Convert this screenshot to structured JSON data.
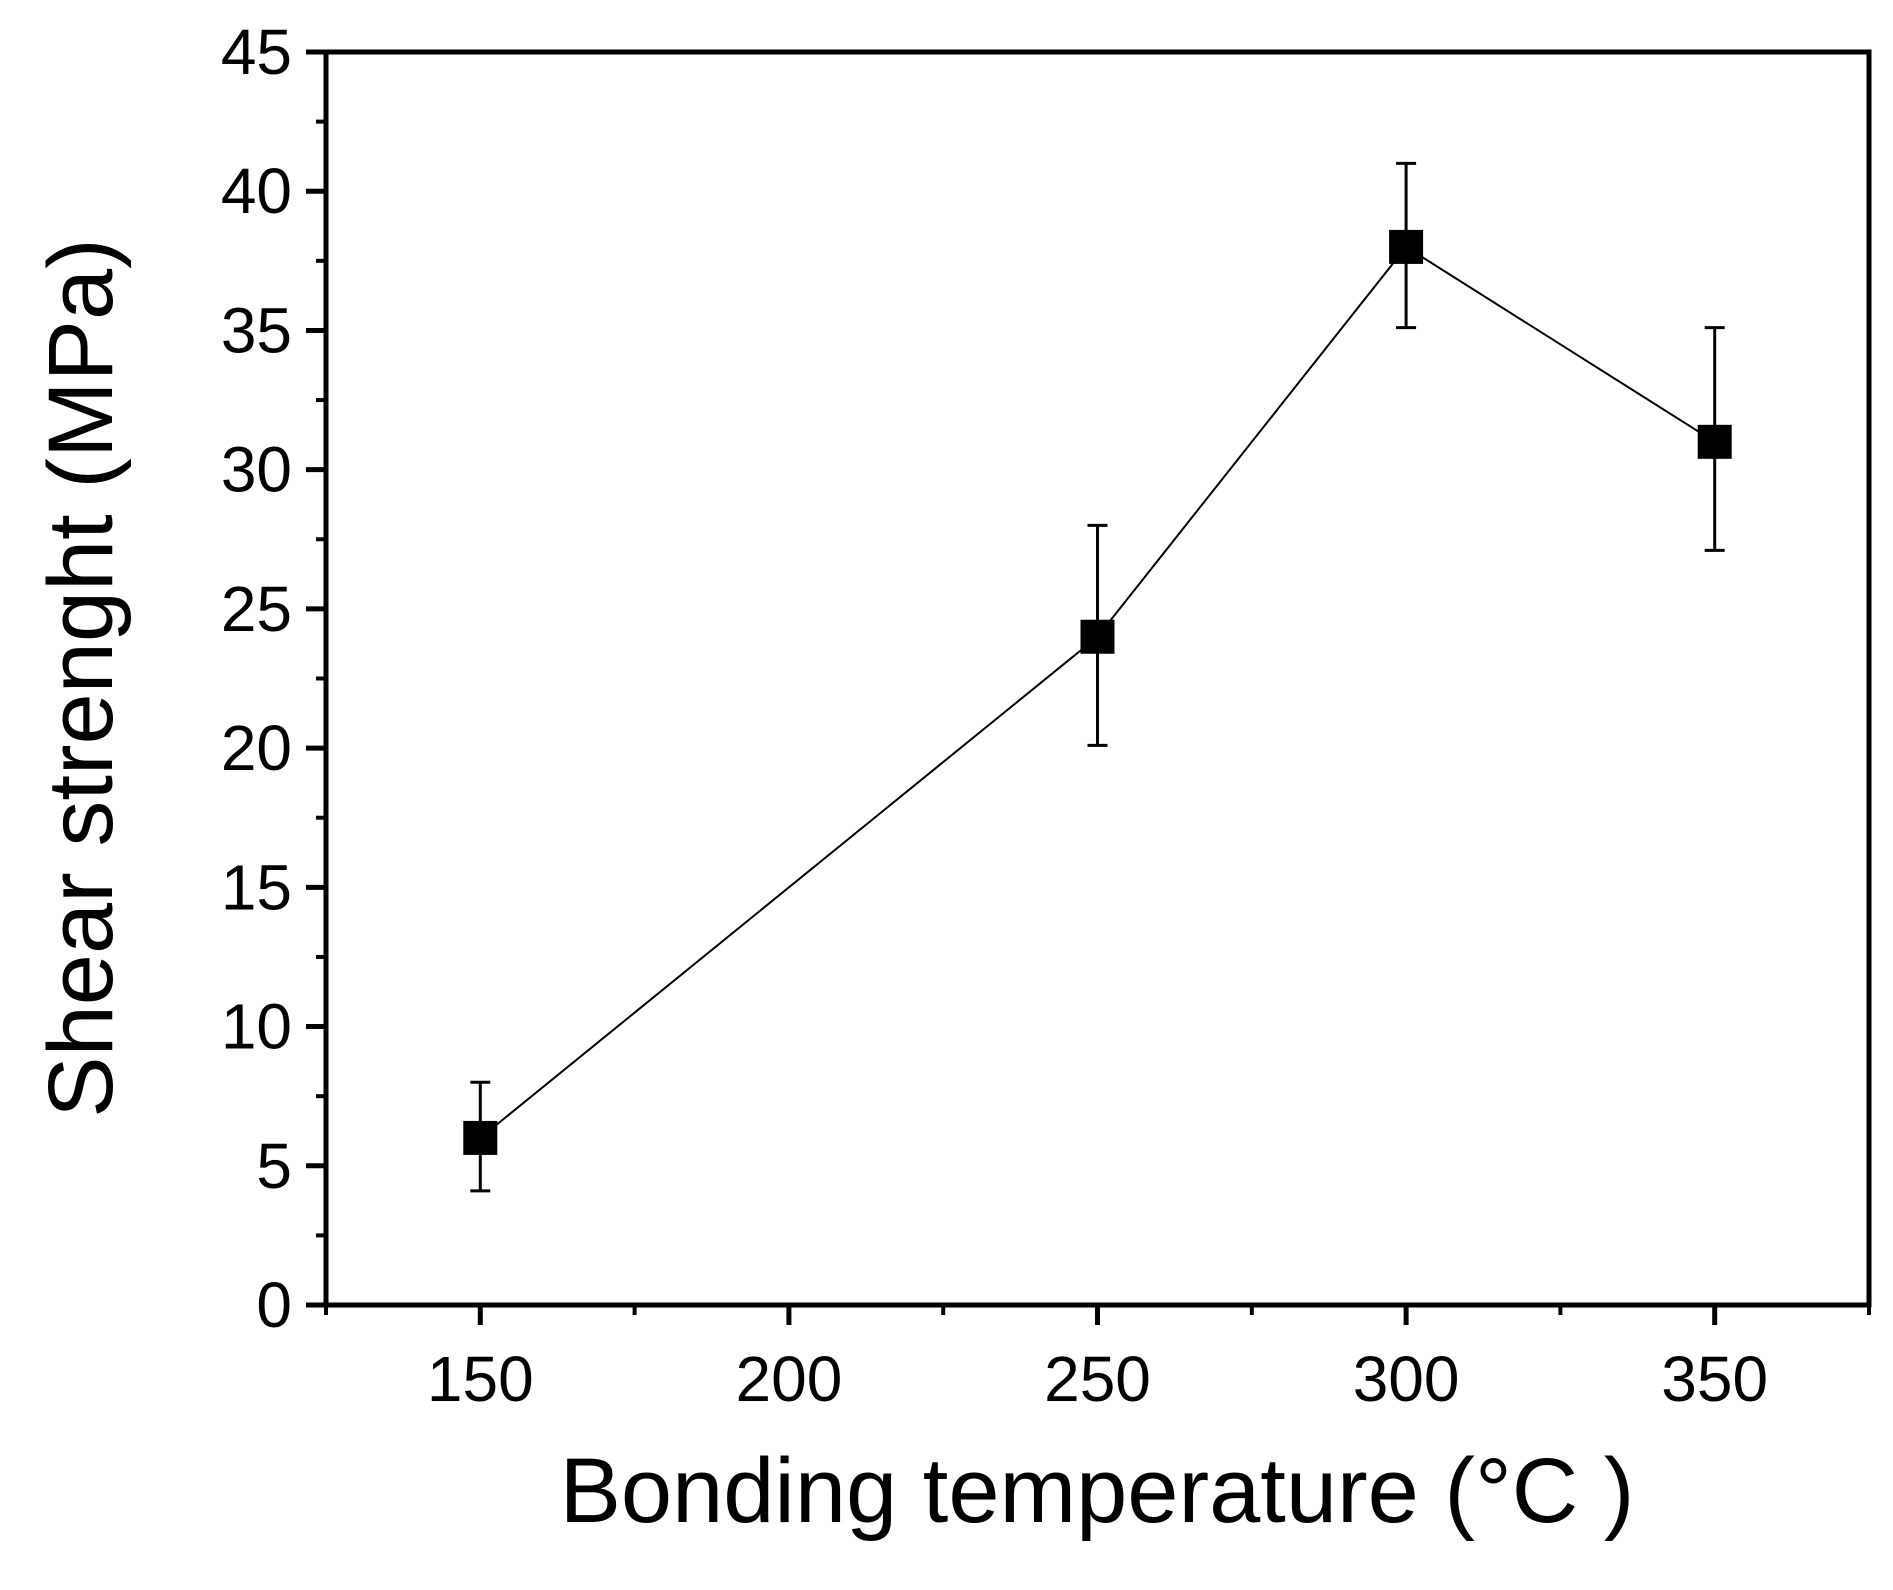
{
  "chart_data": {
    "type": "line",
    "title": "",
    "xlabel": "Bonding temperature (°C )",
    "ylabel": "Shear strenght (MPa)",
    "xlim": [
      125,
      375
    ],
    "ylim": [
      0,
      45
    ],
    "xticks": [
      150,
      200,
      250,
      300,
      350
    ],
    "yticks": [
      0,
      5,
      10,
      15,
      20,
      25,
      30,
      35,
      40,
      45
    ],
    "grid": false,
    "legend": "none",
    "series": [
      {
        "name": "Shear strength",
        "marker": "square",
        "color": "#000000",
        "x": [
          150,
          250,
          300,
          350
        ],
        "y": [
          6,
          24,
          38,
          31
        ],
        "error_low": [
          4.1,
          20.1,
          35.1,
          27.1
        ],
        "error_high": [
          8,
          28,
          41,
          35.1
        ]
      }
    ]
  }
}
